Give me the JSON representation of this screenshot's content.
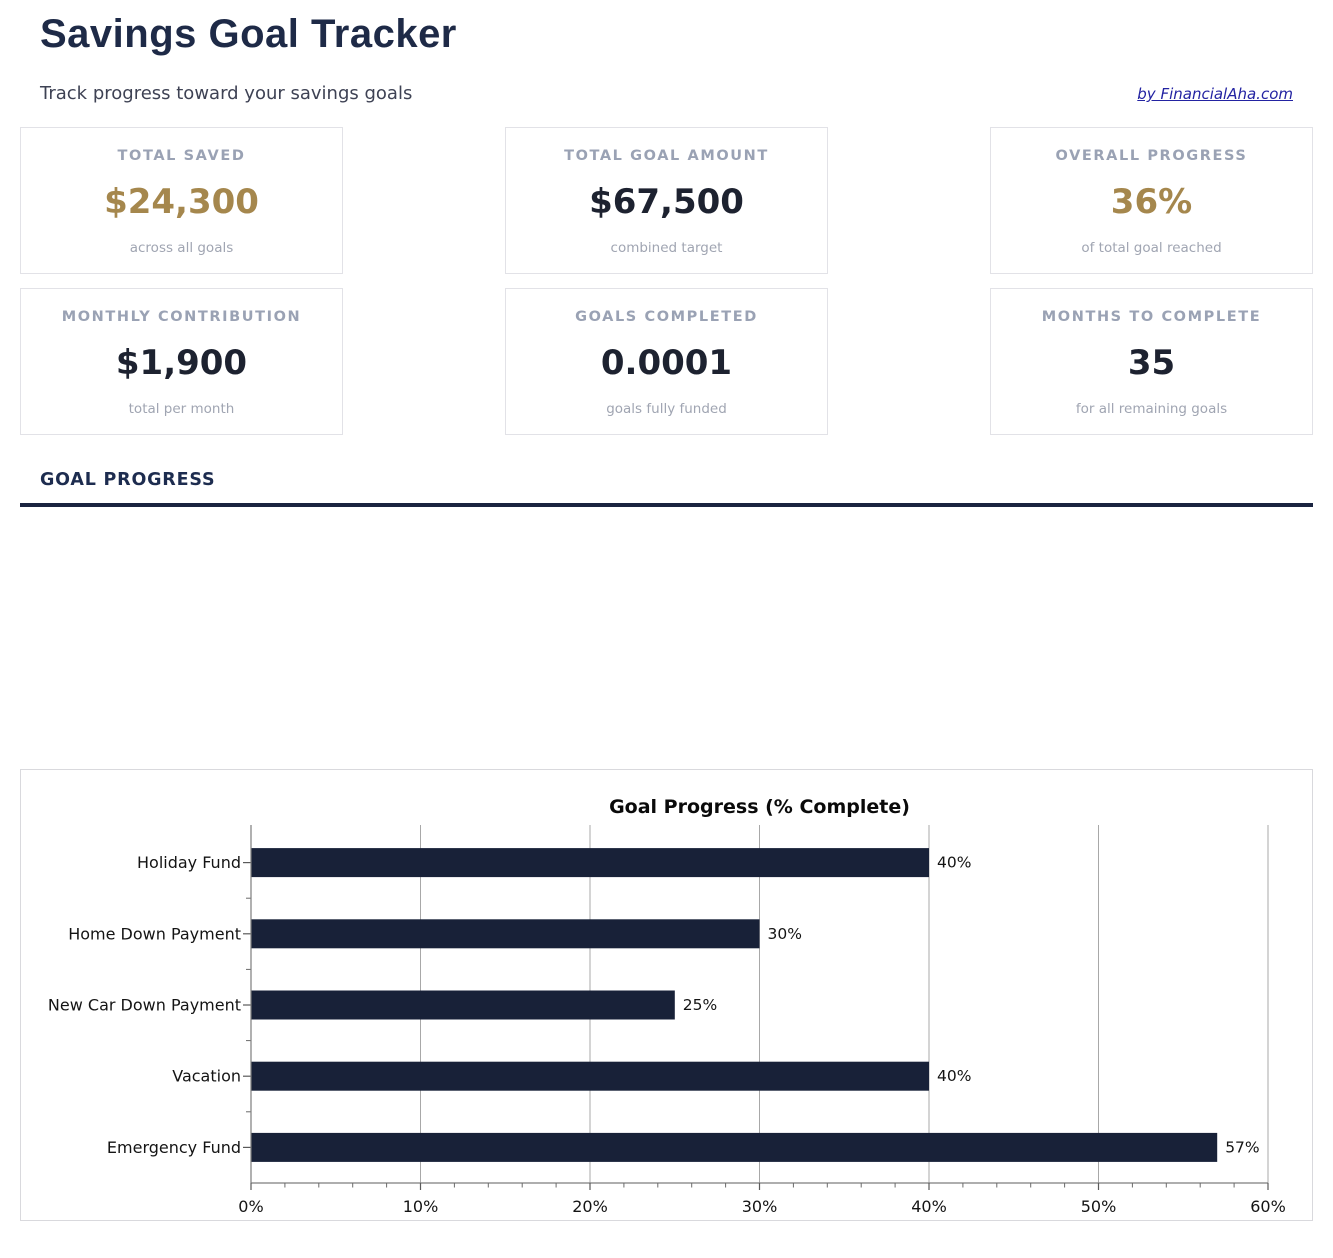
{
  "page": {
    "title": "Savings Goal Tracker",
    "subtitle": "Track progress toward your savings goals",
    "byline": "by FinancialAha.com"
  },
  "stats": [
    {
      "label": "TOTAL SAVED",
      "value": "$24,300",
      "sub": "across all goals",
      "value_color": "#a5874d"
    },
    {
      "label": "TOTAL GOAL AMOUNT",
      "value": "$67,500",
      "sub": "combined target",
      "value_color": "#1d2230"
    },
    {
      "label": "OVERALL PROGRESS",
      "value": "36%",
      "sub": "of total goal reached",
      "value_color": "#a5874d"
    },
    {
      "label": "MONTHLY CONTRIBUTION",
      "value": "$1,900",
      "sub": "total per month",
      "value_color": "#1d2230"
    },
    {
      "label": "GOALS COMPLETED",
      "value": "0.0001",
      "sub": "goals fully funded",
      "value_color": "#1d2230"
    },
    {
      "label": "MONTHS TO COMPLETE",
      "value": "35",
      "sub": "for all remaining goals",
      "value_color": "#1d2230"
    }
  ],
  "section": {
    "title": "GOAL PROGRESS"
  },
  "colors": {
    "heading_navy": "#1e2a47",
    "accent_gold": "#a5874d",
    "bar_navy": "#182138",
    "link_blue": "#2323a2",
    "divider_navy": "#1a2440"
  },
  "chart_data": {
    "type": "bar",
    "orientation": "horizontal",
    "title": "Goal Progress (% Complete)",
    "categories": [
      "Holiday Fund",
      "Home Down Payment",
      "New Car Down Payment",
      "Vacation",
      "Emergency Fund"
    ],
    "values": [
      40,
      30,
      25,
      40,
      57
    ],
    "value_labels": [
      "40%",
      "30%",
      "25%",
      "40%",
      "57%"
    ],
    "xlabel": "",
    "ylabel": "",
    "xlim": [
      0,
      60
    ],
    "x_ticks": [
      "0%",
      "10%",
      "20%",
      "30%",
      "40%",
      "50%",
      "60%"
    ],
    "x_minor_step": 2,
    "grid": true,
    "legend": false,
    "bar_color": "#182138"
  }
}
